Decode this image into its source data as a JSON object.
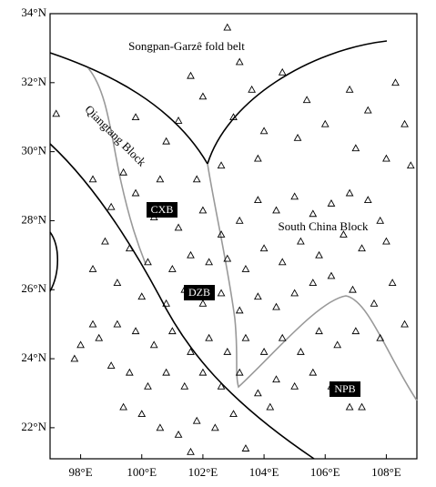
{
  "chart_data": {
    "type": "scatter",
    "annotations": {
      "songpan": "Songpan-Garzê fold belt",
      "qiangtang": "Qiangtang Block",
      "southchina": "South China Block",
      "cxb": "CXB",
      "dzb": "DZB",
      "npb": "NPB"
    },
    "xlim": [
      97,
      109
    ],
    "ylim": [
      21.1,
      34
    ],
    "xticks": [
      {
        "value": 98,
        "label": "98°E"
      },
      {
        "value": 100,
        "label": "100°E"
      },
      {
        "value": 102,
        "label": "102°E"
      },
      {
        "value": 104,
        "label": "104°E"
      },
      {
        "value": 106,
        "label": "106°E"
      },
      {
        "value": 108,
        "label": "108°E"
      }
    ],
    "yticks": [
      {
        "value": 22,
        "label": "22°N"
      },
      {
        "value": 24,
        "label": "24°N"
      },
      {
        "value": 26,
        "label": "26°N"
      },
      {
        "value": 28,
        "label": "28°N"
      },
      {
        "value": 30,
        "label": "30°N"
      },
      {
        "value": 32,
        "label": "32°N"
      },
      {
        "value": 34,
        "label": "34°N"
      }
    ],
    "color": "#000000",
    "x": [
      102.8,
      103.2,
      104.6,
      101.6,
      102.0,
      103.6,
      105.4,
      106.8,
      108.3,
      107.4,
      108.6,
      97.2,
      99.8,
      100.8,
      101.2,
      103.0,
      104.0,
      105.1,
      106.0,
      107.0,
      108.0,
      108.8,
      103.8,
      102.6,
      101.8,
      100.6,
      99.4,
      98.4,
      99.0,
      99.8,
      100.4,
      101.2,
      102.0,
      102.6,
      103.2,
      103.8,
      104.4,
      105.0,
      105.6,
      106.2,
      106.8,
      107.4,
      107.8,
      108.0,
      107.2,
      106.6,
      105.8,
      105.2,
      104.6,
      104.0,
      103.4,
      102.8,
      102.2,
      101.6,
      101.0,
      100.2,
      99.6,
      98.8,
      98.4,
      99.2,
      100.0,
      100.8,
      101.4,
      102.0,
      102.6,
      103.2,
      103.8,
      104.4,
      105.0,
      105.6,
      106.2,
      106.9,
      107.6,
      108.2,
      108.6,
      107.8,
      107.0,
      106.4,
      105.8,
      105.2,
      104.6,
      104.0,
      103.4,
      102.8,
      102.2,
      101.6,
      101.0,
      100.4,
      99.8,
      99.2,
      98.6,
      98.0,
      97.8,
      98.4,
      99.0,
      99.6,
      100.2,
      100.8,
      101.4,
      102.0,
      102.6,
      103.2,
      103.8,
      104.4,
      105.0,
      105.6,
      106.2,
      106.8,
      107.2,
      104.2,
      103.0,
      102.4,
      101.8,
      101.2,
      100.6,
      101.6,
      103.4,
      100.0,
      99.4
    ],
    "y": [
      33.6,
      32.6,
      32.3,
      32.2,
      31.6,
      31.8,
      31.5,
      31.8,
      32.0,
      31.2,
      30.8,
      31.1,
      31.0,
      30.3,
      30.9,
      31.0,
      30.6,
      30.4,
      30.8,
      30.1,
      29.8,
      29.6,
      29.8,
      29.6,
      29.2,
      29.2,
      29.4,
      29.2,
      28.4,
      28.8,
      28.1,
      27.8,
      28.3,
      27.6,
      28.0,
      28.6,
      28.3,
      28.7,
      28.2,
      28.5,
      28.8,
      28.6,
      28.0,
      27.4,
      27.2,
      27.6,
      27.0,
      27.4,
      26.8,
      27.2,
      26.6,
      26.9,
      26.8,
      27.0,
      26.6,
      26.8,
      27.2,
      27.4,
      26.6,
      26.2,
      25.8,
      25.6,
      26.0,
      25.6,
      25.9,
      25.4,
      25.8,
      25.5,
      25.9,
      26.2,
      26.4,
      26.0,
      25.6,
      26.2,
      25.0,
      24.6,
      24.8,
      24.4,
      24.8,
      24.2,
      24.6,
      24.2,
      24.6,
      24.2,
      24.6,
      24.2,
      24.8,
      24.4,
      24.8,
      25.0,
      24.6,
      24.4,
      24.0,
      25.0,
      23.8,
      23.6,
      23.2,
      23.6,
      23.2,
      23.6,
      23.2,
      23.6,
      23.0,
      23.4,
      23.2,
      23.6,
      23.2,
      22.6,
      22.6,
      22.6,
      22.4,
      22.0,
      22.2,
      21.8,
      22.0,
      21.3,
      21.4,
      22.4,
      22.6
    ]
  }
}
